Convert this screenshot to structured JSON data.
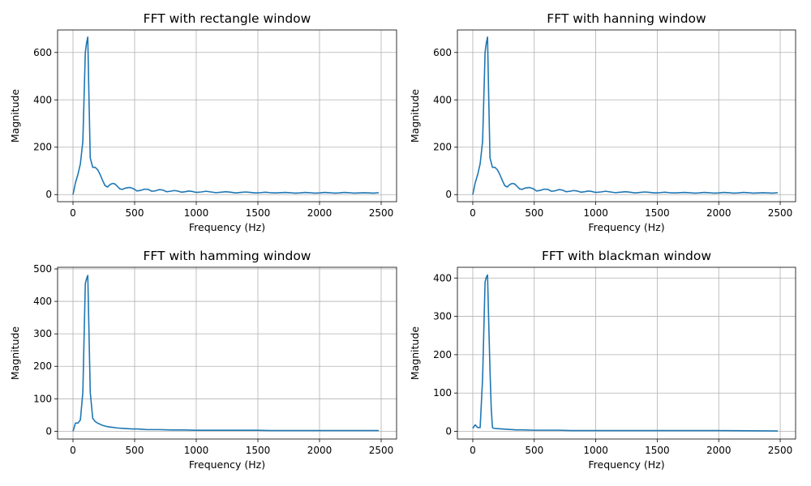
{
  "chart_data": [
    {
      "type": "line",
      "title": "FFT with rectangle window",
      "xlabel": "Frequency (Hz)",
      "ylabel": "Magnitude",
      "xlim": [
        -125,
        2625
      ],
      "ylim": [
        -30,
        695
      ],
      "xticks": [
        0,
        500,
        1000,
        1500,
        2000,
        2500
      ],
      "yticks": [
        0,
        200,
        400,
        600
      ],
      "grid": true,
      "color": "#1f77b4",
      "series": [
        {
          "x": [
            0,
            20,
            40,
            60,
            80,
            100,
            110,
            120,
            130,
            140,
            160,
            180,
            200,
            220,
            240,
            260,
            280,
            300,
            320,
            340,
            360,
            380,
            400,
            430,
            460,
            490,
            520,
            550,
            580,
            610,
            640,
            670,
            700,
            730,
            760,
            790,
            820,
            850,
            880,
            910,
            940,
            970,
            1000,
            1040,
            1080,
            1120,
            1160,
            1200,
            1240,
            1280,
            1320,
            1360,
            1400,
            1440,
            1480,
            1520,
            1560,
            1600,
            1640,
            1680,
            1720,
            1760,
            1800,
            1840,
            1880,
            1920,
            1960,
            2000,
            2040,
            2080,
            2120,
            2160,
            2200,
            2240,
            2280,
            2320,
            2360,
            2400,
            2440,
            2480
          ],
          "y": [
            0,
            50,
            85,
            130,
            225,
            600,
            640,
            665,
            400,
            155,
            115,
            115,
            105,
            85,
            60,
            38,
            32,
            42,
            47,
            45,
            35,
            24,
            22,
            28,
            30,
            25,
            15,
            18,
            23,
            22,
            14,
            16,
            21,
            19,
            12,
            14,
            17,
            15,
            10,
            12,
            15,
            13,
            9,
            11,
            14,
            11,
            8,
            10,
            12,
            10,
            7,
            9,
            11,
            9,
            7,
            8,
            10,
            8,
            7,
            8,
            9,
            8,
            6,
            7,
            9,
            8,
            6,
            7,
            9,
            8,
            6,
            7,
            9,
            8,
            6,
            7,
            8,
            7,
            6,
            8
          ]
        }
      ]
    },
    {
      "type": "line",
      "title": "FFT with hanning window",
      "xlabel": "Frequency (Hz)",
      "ylabel": "Magnitude",
      "xlim": [
        -125,
        2625
      ],
      "ylim": [
        -30,
        695
      ],
      "xticks": [
        0,
        500,
        1000,
        1500,
        2000,
        2500
      ],
      "yticks": [
        0,
        200,
        400,
        600
      ],
      "grid": true,
      "color": "#1f77b4",
      "series": [
        {
          "x": [
            0,
            20,
            40,
            60,
            80,
            100,
            110,
            120,
            130,
            140,
            160,
            180,
            200,
            220,
            240,
            260,
            280,
            300,
            320,
            340,
            360,
            380,
            400,
            430,
            460,
            490,
            520,
            550,
            580,
            610,
            640,
            670,
            700,
            730,
            760,
            790,
            820,
            850,
            880,
            910,
            940,
            970,
            1000,
            1040,
            1080,
            1120,
            1160,
            1200,
            1240,
            1280,
            1320,
            1360,
            1400,
            1440,
            1480,
            1520,
            1560,
            1600,
            1640,
            1680,
            1720,
            1760,
            1800,
            1840,
            1880,
            1920,
            1960,
            2000,
            2040,
            2080,
            2120,
            2160,
            2200,
            2240,
            2280,
            2320,
            2360,
            2400,
            2440,
            2480
          ],
          "y": [
            0,
            50,
            85,
            130,
            225,
            600,
            640,
            665,
            400,
            155,
            115,
            115,
            105,
            85,
            60,
            38,
            32,
            42,
            47,
            45,
            35,
            24,
            22,
            28,
            30,
            25,
            15,
            18,
            23,
            22,
            14,
            16,
            21,
            19,
            12,
            14,
            17,
            15,
            10,
            12,
            15,
            13,
            9,
            11,
            14,
            11,
            8,
            10,
            12,
            10,
            7,
            9,
            11,
            9,
            7,
            8,
            10,
            8,
            7,
            8,
            9,
            8,
            6,
            7,
            9,
            8,
            6,
            7,
            9,
            8,
            6,
            7,
            9,
            8,
            6,
            7,
            8,
            7,
            6,
            8
          ]
        }
      ]
    },
    {
      "type": "line",
      "title": "FFT with hamming window",
      "xlabel": "Frequency (Hz)",
      "ylabel": "Magnitude",
      "xlim": [
        -125,
        2625
      ],
      "ylim": [
        -24,
        505
      ],
      "xticks": [
        0,
        500,
        1000,
        1500,
        2000,
        2500
      ],
      "yticks": [
        0,
        100,
        200,
        300,
        400,
        500
      ],
      "grid": true,
      "color": "#1f77b4",
      "series": [
        {
          "x": [
            0,
            20,
            40,
            60,
            80,
            100,
            110,
            120,
            130,
            140,
            160,
            180,
            200,
            240,
            280,
            320,
            360,
            400,
            440,
            480,
            520,
            560,
            600,
            700,
            800,
            900,
            1000,
            1100,
            1200,
            1300,
            1400,
            1500,
            1600,
            1700,
            1800,
            1900,
            2000,
            2100,
            2200,
            2300,
            2400,
            2480
          ],
          "y": [
            0,
            25,
            25,
            35,
            120,
            455,
            470,
            480,
            300,
            120,
            40,
            30,
            25,
            18,
            14,
            12,
            10,
            9,
            8,
            7,
            7,
            6,
            5,
            5,
            4,
            4,
            3,
            3,
            3,
            3,
            3,
            3,
            2,
            2,
            2,
            2,
            2,
            2,
            2,
            2,
            2,
            2
          ]
        }
      ]
    },
    {
      "type": "line",
      "title": "FFT with blackman window",
      "xlabel": "Frequency (Hz)",
      "ylabel": "Magnitude",
      "xlim": [
        -125,
        2625
      ],
      "ylim": [
        -20,
        428
      ],
      "xticks": [
        0,
        500,
        1000,
        1500,
        2000,
        2500
      ],
      "yticks": [
        0,
        100,
        200,
        300,
        400
      ],
      "grid": true,
      "color": "#1f77b4",
      "series": [
        {
          "x": [
            0,
            20,
            40,
            60,
            80,
            100,
            110,
            120,
            130,
            140,
            150,
            160,
            170,
            200,
            250,
            300,
            350,
            400,
            500,
            600,
            700,
            800,
            1000,
            1200,
            1500,
            2000,
            2480
          ],
          "y": [
            8,
            17,
            10,
            10,
            140,
            390,
            402,
            408,
            280,
            160,
            60,
            10,
            8,
            7,
            6,
            5,
            4,
            4,
            3,
            3,
            3,
            2,
            2,
            2,
            2,
            2,
            1
          ]
        }
      ]
    }
  ]
}
